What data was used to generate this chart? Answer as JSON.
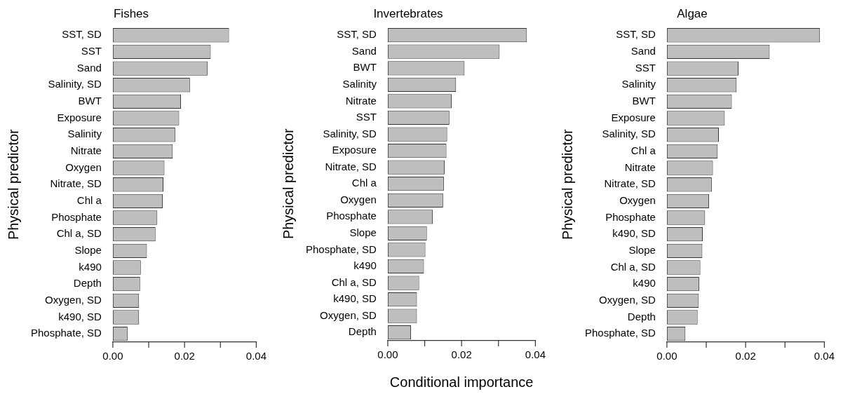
{
  "chart_data": [
    {
      "type": "bar",
      "orientation": "horizontal",
      "title": "Fishes",
      "ylabel": "Physical predictor",
      "categories": [
        "SST, SD",
        "SST",
        "Sand",
        "Salinity, SD",
        "BWT",
        "Exposure",
        "Salinity",
        "Nitrate",
        "Oxygen",
        "Nitrate, SD",
        "Chl a",
        "Phosphate",
        "Chl a, SD",
        "Slope",
        "k490",
        "Depth",
        "Oxygen, SD",
        "k490, SD",
        "Phosphate, SD"
      ],
      "values": [
        0.0324,
        0.0273,
        0.0264,
        0.0215,
        0.019,
        0.0185,
        0.0174,
        0.0167,
        0.0144,
        0.0141,
        0.0139,
        0.0124,
        0.0119,
        0.0095,
        0.0078,
        0.0076,
        0.0073,
        0.0073,
        0.0041
      ],
      "color": "#bebebe",
      "xlim": [
        0,
        0.04
      ],
      "xticks": [
        {
          "value": 0,
          "label": "0.00"
        },
        {
          "value": 0.01,
          "label": null
        },
        {
          "value": 0.02,
          "label": "0.02"
        },
        {
          "value": 0.03,
          "label": null
        },
        {
          "value": 0.04,
          "label": "0.04"
        }
      ],
      "grid": false,
      "legend": false
    },
    {
      "type": "bar",
      "orientation": "horizontal",
      "title": "Invertebrates",
      "ylabel": "Physical predictor",
      "xlabel": "Conditional importance",
      "categories": [
        "SST, SD",
        "Sand",
        "BWT",
        "Salinity",
        "Nitrate",
        "SST",
        "Salinity, SD",
        "Exposure",
        "Nitrate, SD",
        "Chl a",
        "Oxygen",
        "Phosphate",
        "Slope",
        "Phosphate, SD",
        "k490",
        "Chl a, SD",
        "k490, SD",
        "Oxygen, SD",
        "Depth"
      ],
      "values": [
        0.0377,
        0.0303,
        0.0208,
        0.0185,
        0.0173,
        0.0167,
        0.0161,
        0.0159,
        0.0154,
        0.0152,
        0.015,
        0.0122,
        0.0106,
        0.0102,
        0.0098,
        0.0085,
        0.0079,
        0.0079,
        0.0063
      ],
      "color": "#bebebe",
      "xlim": [
        0,
        0.04
      ],
      "xticks": [
        {
          "value": 0,
          "label": "0.00"
        },
        {
          "value": 0.01,
          "label": null
        },
        {
          "value": 0.02,
          "label": "0.02"
        },
        {
          "value": 0.03,
          "label": null
        },
        {
          "value": 0.04,
          "label": "0.04"
        }
      ],
      "grid": false,
      "legend": false
    },
    {
      "type": "bar",
      "orientation": "horizontal",
      "title": "Algae",
      "ylabel": "Physical predictor",
      "categories": [
        "SST, SD",
        "Sand",
        "SST",
        "Salinity",
        "BWT",
        "Exposure",
        "Salinity, SD",
        "Chl a",
        "Nitrate",
        "Nitrate, SD",
        "Oxygen",
        "Phosphate",
        "k490, SD",
        "Slope",
        "Chl a, SD",
        "k490",
        "Oxygen, SD",
        "Depth",
        "Phosphate, SD"
      ],
      "values": [
        0.0389,
        0.0261,
        0.0182,
        0.0177,
        0.0165,
        0.0147,
        0.0132,
        0.0129,
        0.0117,
        0.0114,
        0.0107,
        0.0097,
        0.0091,
        0.009,
        0.0085,
        0.0082,
        0.0081,
        0.0078,
        0.0047
      ],
      "color": "#bebebe",
      "xlim": [
        0,
        0.04
      ],
      "xticks": [
        {
          "value": 0,
          "label": "0.00"
        },
        {
          "value": 0.01,
          "label": null
        },
        {
          "value": 0.02,
          "label": "0.02"
        },
        {
          "value": 0.03,
          "label": null
        },
        {
          "value": 0.04,
          "label": "0.04"
        }
      ],
      "grid": false,
      "legend": false
    }
  ]
}
